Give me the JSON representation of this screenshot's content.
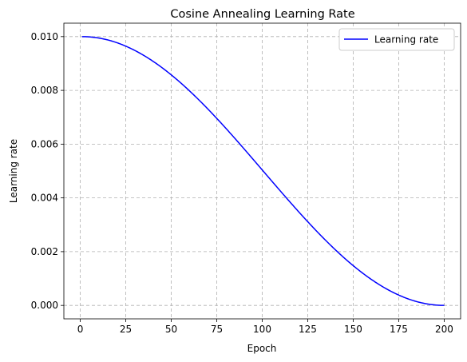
{
  "chart_data": {
    "type": "line",
    "title": "Cosine Annealing Learning Rate",
    "xlabel": "Epoch",
    "ylabel": "Learning rate",
    "xlim": [
      -9,
      209
    ],
    "ylim": [
      -0.0005,
      0.0105
    ],
    "xticks": [
      0,
      25,
      50,
      75,
      100,
      125,
      150,
      175,
      200
    ],
    "xtick_labels": [
      "0",
      "25",
      "50",
      "75",
      "100",
      "125",
      "150",
      "175",
      "200"
    ],
    "yticks": [
      0.0,
      0.002,
      0.004,
      0.006,
      0.008,
      0.01
    ],
    "ytick_labels": [
      "0.000",
      "0.002",
      "0.004",
      "0.006",
      "0.008",
      "0.010"
    ],
    "grid": true,
    "legend_position": "top-right",
    "series": [
      {
        "name": "Learning rate",
        "color": "#0000ff",
        "x": [
          1,
          10,
          20,
          30,
          40,
          50,
          60,
          70,
          80,
          90,
          100,
          110,
          120,
          130,
          140,
          150,
          160,
          170,
          180,
          190,
          200
        ],
        "values": [
          0.01,
          0.00951,
          0.00979,
          0.00946,
          0.00902,
          0.00849,
          0.00787,
          0.00717,
          0.00641,
          0.0056,
          0.00476,
          0.00392,
          0.00311,
          0.00234,
          0.00165,
          0.00106,
          0.00059,
          0.00025,
          5e-05,
          0.0,
          0.0
        ]
      }
    ]
  }
}
